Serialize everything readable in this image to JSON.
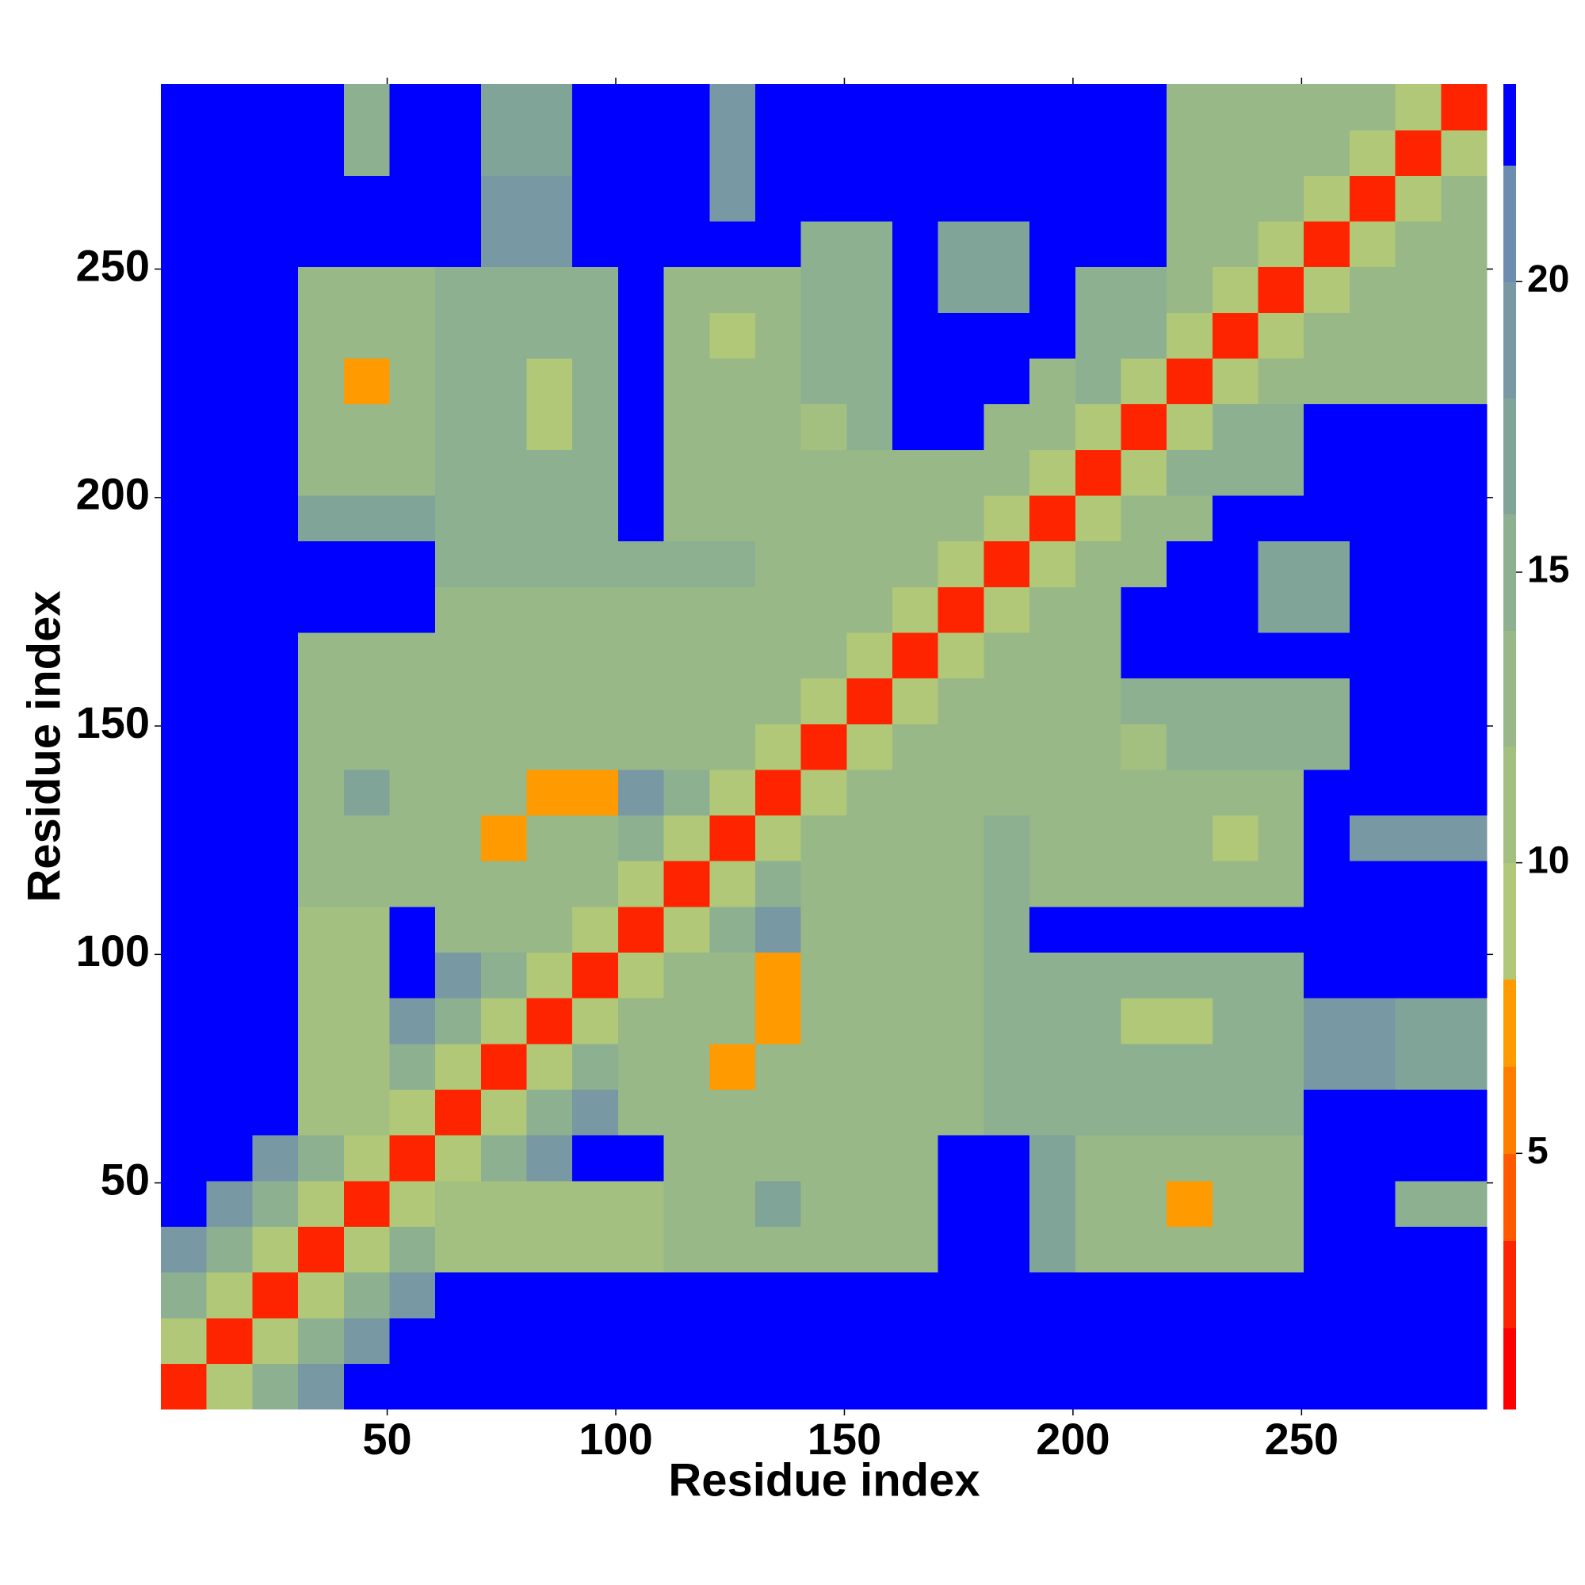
{
  "chart_data": {
    "type": "heatmap",
    "xlabel": "Residue index",
    "ylabel": "Residue index",
    "x": [
      5.5,
      15.5,
      25.5,
      35.5,
      45.5,
      55.5,
      65.5,
      75.5,
      85.5,
      95.5,
      105.5,
      115.5,
      125.5,
      135.5,
      145.5,
      155.5,
      165.5,
      175.5,
      185.5,
      195.5,
      205.5,
      215.5,
      225.5,
      235.5,
      245.5,
      255.5,
      265.5,
      275.5,
      285.5
    ],
    "y": [
      5.5,
      15.5,
      25.5,
      35.5,
      45.5,
      55.5,
      65.5,
      75.5,
      85.5,
      95.5,
      105.5,
      115.5,
      125.5,
      135.5,
      145.5,
      155.5,
      165.5,
      175.5,
      185.5,
      195.5,
      205.5,
      215.5,
      225.5,
      235.5,
      245.5,
      255.5,
      265.5,
      275.5,
      285.5
    ],
    "xlim": [
      0.5,
      290.5
    ],
    "ylim": [
      0.5,
      290.5
    ],
    "xticks": [
      50,
      100,
      150,
      200,
      250
    ],
    "yticks": [
      50,
      100,
      150,
      200,
      250
    ],
    "z": [
      [
        3,
        9,
        16,
        20,
        23,
        23,
        23,
        23,
        23,
        23,
        23,
        23,
        23,
        23,
        23,
        23,
        23,
        23,
        23,
        23,
        23,
        23,
        23,
        23,
        23,
        23,
        23,
        23,
        23
      ],
      [
        9,
        3,
        9,
        16,
        20,
        23,
        23,
        23,
        23,
        23,
        23,
        23,
        23,
        23,
        23,
        23,
        23,
        23,
        23,
        23,
        23,
        23,
        23,
        23,
        23,
        23,
        23,
        23,
        23
      ],
      [
        16,
        9,
        3,
        9,
        16,
        20,
        23,
        23,
        23,
        23,
        23,
        23,
        23,
        23,
        23,
        23,
        23,
        23,
        23,
        23,
        23,
        23,
        23,
        23,
        23,
        23,
        23,
        23,
        23
      ],
      [
        20,
        16,
        9,
        3,
        9,
        16,
        12,
        12,
        12,
        12,
        12,
        13,
        13,
        13,
        13,
        13,
        13,
        23,
        23,
        18,
        14,
        14,
        14,
        14,
        14,
        23,
        23,
        23,
        23
      ],
      [
        23,
        20,
        16,
        9,
        3,
        9,
        12,
        12,
        12,
        12,
        12,
        13,
        13,
        17,
        13,
        13,
        13,
        23,
        23,
        18,
        14,
        14,
        8,
        14,
        14,
        23,
        23,
        16,
        16
      ],
      [
        23,
        23,
        20,
        16,
        9,
        3,
        9,
        16,
        20,
        23,
        23,
        13,
        13,
        13,
        13,
        13,
        13,
        23,
        23,
        18,
        14,
        14,
        14,
        14,
        14,
        23,
        23,
        23,
        23
      ],
      [
        23,
        23,
        23,
        12,
        12,
        9,
        3,
        9,
        16,
        20,
        13,
        13,
        13,
        13,
        13,
        13,
        13,
        13,
        15,
        15,
        15,
        15,
        15,
        15,
        15,
        23,
        23,
        23,
        23
      ],
      [
        23,
        23,
        23,
        12,
        12,
        16,
        9,
        3,
        9,
        16,
        13,
        13,
        8,
        13,
        13,
        13,
        13,
        13,
        15,
        15,
        15,
        15,
        15,
        15,
        15,
        20,
        20,
        17,
        17
      ],
      [
        23,
        23,
        23,
        12,
        12,
        20,
        16,
        9,
        3,
        9,
        13,
        13,
        13,
        7,
        13,
        13,
        13,
        13,
        15,
        15,
        15,
        10,
        9,
        15,
        15,
        20,
        20,
        17,
        17
      ],
      [
        23,
        23,
        23,
        12,
        12,
        23,
        20,
        16,
        9,
        3,
        9,
        13,
        13,
        8,
        13,
        13,
        13,
        13,
        15,
        15,
        15,
        15,
        15,
        15,
        15,
        23,
        23,
        23,
        23
      ],
      [
        23,
        23,
        23,
        12,
        12,
        23,
        13,
        13,
        13,
        9,
        3,
        9,
        16,
        20,
        14,
        14,
        14,
        14,
        15,
        23,
        23,
        23,
        23,
        23,
        23,
        23,
        23,
        23,
        23
      ],
      [
        23,
        23,
        23,
        13,
        13,
        13,
        13,
        13,
        13,
        13,
        9,
        3,
        9,
        16,
        14,
        14,
        14,
        14,
        15,
        14,
        14,
        14,
        14,
        14,
        14,
        23,
        23,
        23,
        23
      ],
      [
        23,
        23,
        23,
        13,
        13,
        13,
        13,
        8,
        13,
        13,
        16,
        9,
        3,
        9,
        14,
        14,
        14,
        14,
        15,
        14,
        14,
        14,
        14,
        10,
        14,
        23,
        19,
        19,
        19
      ],
      [
        23,
        23,
        23,
        13,
        17,
        13,
        13,
        13,
        7,
        8,
        20,
        16,
        9,
        3,
        9,
        14,
        14,
        14,
        14,
        14,
        14,
        14,
        14,
        14,
        14,
        23,
        23,
        23,
        23
      ],
      [
        23,
        23,
        23,
        13,
        13,
        13,
        13,
        13,
        13,
        13,
        14,
        14,
        14,
        9,
        3,
        9,
        14,
        14,
        14,
        14,
        14,
        11,
        15,
        15,
        15,
        15,
        23,
        23,
        23
      ],
      [
        23,
        23,
        23,
        13,
        13,
        13,
        13,
        13,
        13,
        13,
        14,
        14,
        14,
        14,
        9,
        3,
        9,
        14,
        14,
        14,
        14,
        15,
        15,
        15,
        15,
        15,
        23,
        23,
        23
      ],
      [
        23,
        23,
        23,
        13,
        13,
        13,
        13,
        13,
        13,
        13,
        14,
        14,
        14,
        14,
        14,
        9,
        3,
        9,
        14,
        14,
        14,
        23,
        23,
        23,
        23,
        23,
        23,
        23,
        23
      ],
      [
        23,
        23,
        23,
        23,
        23,
        23,
        13,
        13,
        13,
        13,
        14,
        14,
        14,
        14,
        14,
        14,
        9,
        3,
        9,
        14,
        14,
        23,
        23,
        23,
        17,
        17,
        23,
        23,
        23
      ],
      [
        23,
        23,
        23,
        23,
        23,
        23,
        15,
        15,
        15,
        15,
        15,
        15,
        15,
        14,
        14,
        14,
        14,
        9,
        3,
        9,
        14,
        14,
        23,
        23,
        17,
        17,
        23,
        23,
        23
      ],
      [
        23,
        23,
        23,
        18,
        18,
        18,
        15,
        15,
        15,
        15,
        23,
        14,
        14,
        14,
        14,
        14,
        14,
        14,
        9,
        3,
        9,
        14,
        14,
        23,
        23,
        23,
        23,
        23,
        23
      ],
      [
        23,
        23,
        23,
        14,
        14,
        14,
        15,
        15,
        15,
        15,
        23,
        14,
        14,
        14,
        14,
        14,
        14,
        14,
        14,
        9,
        3,
        9,
        16,
        16,
        16,
        23,
        23,
        23,
        23
      ],
      [
        23,
        23,
        23,
        14,
        14,
        14,
        15,
        15,
        10,
        15,
        23,
        14,
        14,
        14,
        11,
        15,
        23,
        23,
        14,
        14,
        9,
        3,
        9,
        16,
        16,
        23,
        23,
        23,
        23
      ],
      [
        23,
        23,
        23,
        14,
        8,
        14,
        15,
        15,
        9,
        15,
        23,
        14,
        14,
        14,
        15,
        15,
        23,
        23,
        23,
        14,
        16,
        9,
        3,
        9,
        14,
        14,
        14,
        14,
        14
      ],
      [
        23,
        23,
        23,
        14,
        14,
        14,
        15,
        15,
        15,
        15,
        23,
        14,
        10,
        14,
        15,
        15,
        23,
        23,
        23,
        23,
        16,
        16,
        9,
        3,
        9,
        14,
        14,
        14,
        14
      ],
      [
        23,
        23,
        23,
        14,
        14,
        14,
        15,
        15,
        15,
        15,
        23,
        14,
        14,
        14,
        15,
        15,
        23,
        17,
        17,
        23,
        16,
        16,
        14,
        9,
        3,
        9,
        14,
        14,
        14
      ],
      [
        23,
        23,
        23,
        23,
        23,
        23,
        23,
        20,
        20,
        23,
        23,
        23,
        23,
        23,
        15,
        15,
        23,
        17,
        17,
        23,
        23,
        23,
        14,
        14,
        9,
        3,
        9,
        14,
        14
      ],
      [
        23,
        23,
        23,
        23,
        23,
        23,
        23,
        20,
        20,
        23,
        23,
        23,
        19,
        23,
        23,
        23,
        23,
        23,
        23,
        23,
        23,
        23,
        14,
        14,
        14,
        9,
        3,
        9,
        14
      ],
      [
        23,
        23,
        23,
        23,
        16,
        23,
        23,
        17,
        17,
        23,
        23,
        23,
        19,
        23,
        23,
        23,
        23,
        23,
        23,
        23,
        23,
        23,
        14,
        14,
        14,
        14,
        9,
        3,
        9
      ],
      [
        23,
        23,
        23,
        23,
        16,
        23,
        23,
        17,
        17,
        23,
        23,
        23,
        19,
        23,
        23,
        23,
        23,
        23,
        23,
        23,
        23,
        23,
        14,
        14,
        14,
        14,
        14,
        9,
        3
      ]
    ],
    "colorbar": {
      "bounds": [
        0.6,
        2,
        3.5,
        5,
        6.5,
        8,
        10,
        12,
        14,
        16,
        18,
        20,
        22,
        23.4
      ],
      "colors": [
        "#ff0000",
        "#ff2400",
        "#ff5a00",
        "#ff7e00",
        "#ff9a00",
        "#b0c878",
        "#a4c080",
        "#98b888",
        "#8cb090",
        "#80a498",
        "#7898a4",
        "#6c8cb0",
        "#0000ff"
      ],
      "ticks": [
        5,
        10,
        15,
        20
      ]
    }
  }
}
